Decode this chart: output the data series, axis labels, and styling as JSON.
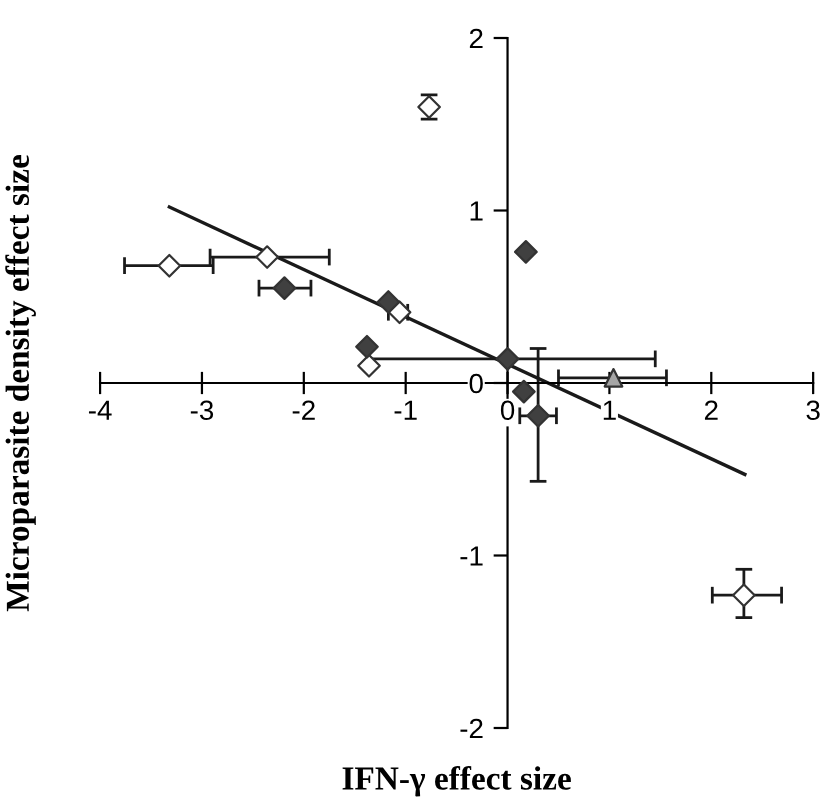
{
  "chart_data": {
    "type": "scatter",
    "xlabel": "IFN-γ effect size",
    "ylabel": "Microparasite density effect size",
    "xlim": [
      -4,
      3
    ],
    "ylim": [
      -2,
      2
    ],
    "xticks": [
      -4,
      -3,
      -2,
      -1,
      0,
      1,
      2,
      3
    ],
    "yticks": [
      -2,
      -1,
      0,
      1,
      2
    ],
    "grid": false,
    "legend": false,
    "series": [
      {
        "color": "#ffffff",
        "marker": "diamond",
        "x": [
          -0.77,
          -3.32,
          -2.36,
          -1.36,
          -1.06,
          2.32
        ],
        "values": [
          1.6,
          0.68,
          0.73,
          0.1,
          0.41,
          -1.23
        ],
        "xerrors": [
          null,
          [
            -3.76,
            -2.89
          ],
          [
            -2.92,
            -1.75
          ],
          null,
          [
            -1.17,
            -0.98
          ],
          [
            2.01,
            2.69
          ]
        ],
        "errors": [
          [
            1.53,
            1.67
          ],
          null,
          null,
          null,
          null,
          [
            -1.36,
            -1.08
          ]
        ]
      },
      {
        "color": "#404040",
        "marker": "diamond",
        "x": [
          0.18,
          -2.19,
          -1.17,
          -1.38,
          0.0,
          0.16,
          0.3
        ],
        "values": [
          0.76,
          0.55,
          0.47,
          0.21,
          0.14,
          -0.05,
          -0.19
        ],
        "xerrors": [
          null,
          [
            -2.44,
            -1.93
          ],
          null,
          null,
          [
            -1.36,
            1.45
          ],
          null,
          [
            0.12,
            0.48
          ]
        ],
        "errors": [
          null,
          null,
          null,
          null,
          null,
          null,
          [
            -0.57,
            0.2
          ]
        ]
      },
      {
        "color": "#a6a6a6",
        "marker": "triangle",
        "x": [
          1.04
        ],
        "values": [
          0.03
        ],
        "xerrors": [
          [
            0.5,
            1.56
          ]
        ]
      },
      {
        "type": "line",
        "color": "#1a1a1a",
        "marker": "none",
        "line_style": "solid",
        "x": [
          -3.32,
          2.33
        ],
        "values": [
          1.02,
          -0.53
        ]
      }
    ]
  }
}
